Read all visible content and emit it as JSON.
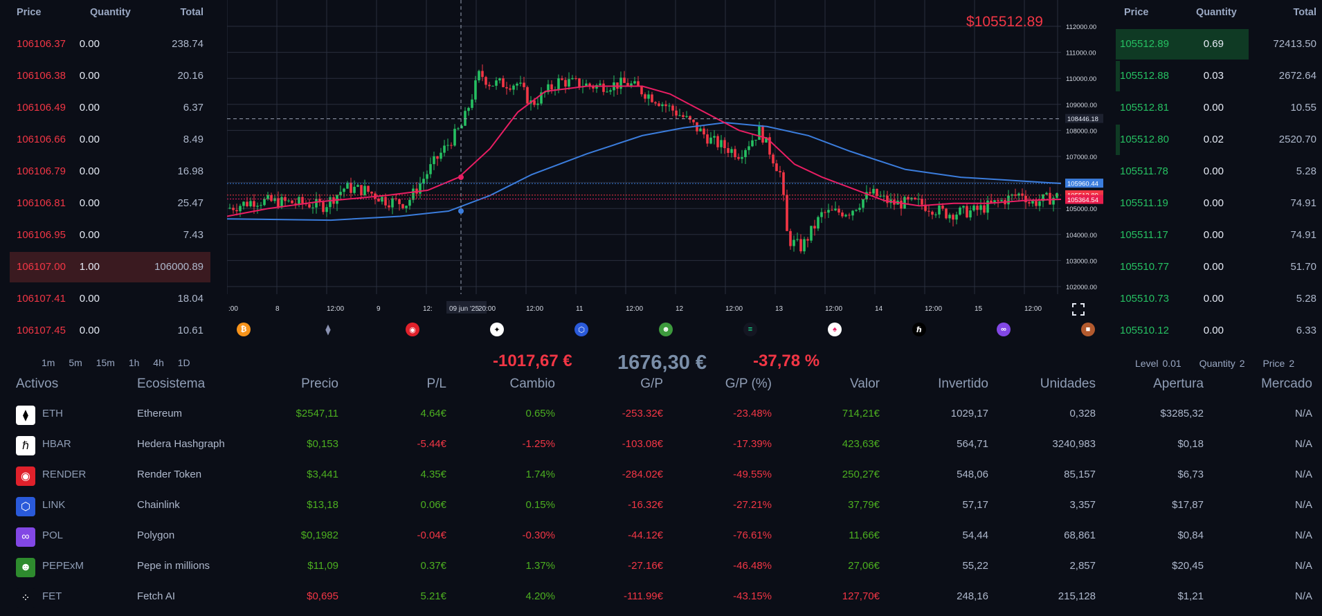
{
  "colors": {
    "up": "#26c062",
    "down": "#f23645",
    "ema_fast": "#e91e63",
    "ema_slow": "#3b7ddd",
    "pnl_pos": "#4caf20"
  },
  "book_left": {
    "headers": [
      "Price",
      "Quantity",
      "Total"
    ],
    "rows": [
      {
        "price": "106106.37",
        "qty": "0.00",
        "total": "238.74"
      },
      {
        "price": "106106.38",
        "qty": "0.00",
        "total": "20.16"
      },
      {
        "price": "106106.49",
        "qty": "0.00",
        "total": "6.37"
      },
      {
        "price": "106106.66",
        "qty": "0.00",
        "total": "8.49"
      },
      {
        "price": "106106.79",
        "qty": "0.00",
        "total": "16.98"
      },
      {
        "price": "106106.81",
        "qty": "0.00",
        "total": "25.47"
      },
      {
        "price": "106106.95",
        "qty": "0.00",
        "total": "7.43"
      },
      {
        "price": "106107.00",
        "qty": "1.00",
        "total": "106000.89"
      },
      {
        "price": "106107.41",
        "qty": "0.00",
        "total": "18.04"
      },
      {
        "price": "106107.45",
        "qty": "0.00",
        "total": "10.61"
      }
    ]
  },
  "book_right": {
    "headers": [
      "Price",
      "Quantity",
      "Total"
    ],
    "rows": [
      {
        "price": "105512.89",
        "qty": "0.69",
        "total": "72413.50"
      },
      {
        "price": "105512.88",
        "qty": "0.03",
        "total": "2672.64"
      },
      {
        "price": "105512.81",
        "qty": "0.00",
        "total": "10.55"
      },
      {
        "price": "105512.80",
        "qty": "0.02",
        "total": "2520.70"
      },
      {
        "price": "105511.78",
        "qty": "0.00",
        "total": "5.28"
      },
      {
        "price": "105511.19",
        "qty": "0.00",
        "total": "74.91"
      },
      {
        "price": "105511.17",
        "qty": "0.00",
        "total": "74.91"
      },
      {
        "price": "105510.77",
        "qty": "0.00",
        "total": "51.70"
      },
      {
        "price": "105510.73",
        "qty": "0.00",
        "total": "5.28"
      },
      {
        "price": "105510.12",
        "qty": "0.00",
        "total": "6.33"
      }
    ]
  },
  "chart": {
    "price_label": "$105512.89",
    "y_ticks": [
      "112000.00",
      "111000.00",
      "110000.00",
      "109000.00",
      "108000.00",
      "107000.00",
      "106000.00",
      "105000.00",
      "104000.00",
      "103000.00",
      "102000.00"
    ],
    "x_ticks": [
      ":00",
      "8",
      "12:00",
      "9",
      "12:",
      "09 jun '25",
      "20:00",
      "12:00",
      "11",
      "12:00",
      "12",
      "12:00",
      "13",
      "12:00",
      "14",
      "12:00",
      "15",
      "12:00"
    ],
    "crosshair_price": "108446.18",
    "ema_slow_tag": "105960.44",
    "last_tag": "105512.89",
    "ema_fast_tag": "105364.54"
  },
  "coins": [
    "btc-icon",
    "eth-icon",
    "render-icon",
    "fetch-icon",
    "link-icon",
    "pepe-icon",
    "sol-icon",
    "ondo-icon",
    "hbar-icon",
    "pol-icon",
    "misc-icon"
  ],
  "timeframes": [
    "1m",
    "5m",
    "15m",
    "1h",
    "4h",
    "1D"
  ],
  "summary": {
    "pl": "-1017,67 €",
    "total": "1676,30 €",
    "pct": "-37,78 %"
  },
  "settings": {
    "level_label": "Level",
    "level": "0.01",
    "qty_label": "Quantity",
    "qty": "2",
    "price_label": "Price",
    "price": "2"
  },
  "portfolio": {
    "headers": [
      "Activos",
      "Ecosistema",
      "Precio",
      "P/L",
      "Cambio",
      "G/P",
      "G/P (%)",
      "Valor",
      "Invertido",
      "Unidades",
      "Apertura",
      "Mercado"
    ],
    "rows": [
      {
        "sym": "ETH",
        "eco": "Ethereum",
        "precio": "$2547,11",
        "pl": "4.64€",
        "cambio": "0.65%",
        "gp": "-253.32€",
        "gpp": "-23.48%",
        "valor": "714,21€",
        "inv": "1029,17",
        "uni": "0,328",
        "ap": "$3285,32",
        "mer": "N/A",
        "icon": "eth-icon",
        "bg": "#ffffff",
        "pc": "pos",
        "plc": "pos",
        "cc": "pos",
        "vc": "pos"
      },
      {
        "sym": "HBAR",
        "eco": "Hedera Hashgraph",
        "precio": "$0,153",
        "pl": "-5.44€",
        "cambio": "-1.25%",
        "gp": "-103.08€",
        "gpp": "-17.39%",
        "valor": "423,63€",
        "inv": "564,71",
        "uni": "3240,983",
        "ap": "$0,18",
        "mer": "N/A",
        "icon": "hbar-icon",
        "bg": "#ffffff",
        "pc": "pos",
        "plc": "neg",
        "cc": "neg",
        "vc": "pos"
      },
      {
        "sym": "RENDER",
        "eco": "Render Token",
        "precio": "$3,441",
        "pl": "4.35€",
        "cambio": "1.74%",
        "gp": "-284.02€",
        "gpp": "-49.55%",
        "valor": "250,27€",
        "inv": "548,06",
        "uni": "85,157",
        "ap": "$6,73",
        "mer": "N/A",
        "icon": "render-icon",
        "bg": "#e0212b",
        "pc": "pos",
        "plc": "pos",
        "cc": "pos",
        "vc": "pos"
      },
      {
        "sym": "LINK",
        "eco": "Chainlink",
        "precio": "$13,18",
        "pl": "0.06€",
        "cambio": "0.15%",
        "gp": "-16.32€",
        "gpp": "-27.21%",
        "valor": "37,79€",
        "inv": "57,17",
        "uni": "3,357",
        "ap": "$17,87",
        "mer": "N/A",
        "icon": "link-icon",
        "bg": "#2a5ada",
        "pc": "pos",
        "plc": "pos",
        "cc": "pos",
        "vc": "pos"
      },
      {
        "sym": "POL",
        "eco": "Polygon",
        "precio": "$0,1982",
        "pl": "-0.04€",
        "cambio": "-0.30%",
        "gp": "-44.12€",
        "gpp": "-76.61%",
        "valor": "11,66€",
        "inv": "54,44",
        "uni": "68,861",
        "ap": "$0,84",
        "mer": "N/A",
        "icon": "pol-icon",
        "bg": "#8247e5",
        "pc": "pos",
        "plc": "neg",
        "cc": "neg",
        "vc": "pos"
      },
      {
        "sym": "PEPExM",
        "eco": "Pepe in millions",
        "precio": "$11,09",
        "pl": "0.37€",
        "cambio": "1.37%",
        "gp": "-27.16€",
        "gpp": "-46.48%",
        "valor": "27,06€",
        "inv": "55,22",
        "uni": "2,857",
        "ap": "$20,45",
        "mer": "N/A",
        "icon": "pepe-icon",
        "bg": "#2e8b2e",
        "pc": "pos",
        "plc": "pos",
        "cc": "pos",
        "vc": "pos"
      },
      {
        "sym": "FET",
        "eco": "Fetch AI",
        "precio": "$0,695",
        "pl": "5.21€",
        "cambio": "4.20%",
        "gp": "-111.99€",
        "gpp": "-43.15%",
        "valor": "127,70€",
        "inv": "248,16",
        "uni": "215,128",
        "ap": "$1,21",
        "mer": "N/A",
        "icon": "fetch-icon",
        "bg": "#0b0e17",
        "pc": "neg",
        "plc": "pos",
        "cc": "pos",
        "vc": "neg"
      }
    ]
  }
}
